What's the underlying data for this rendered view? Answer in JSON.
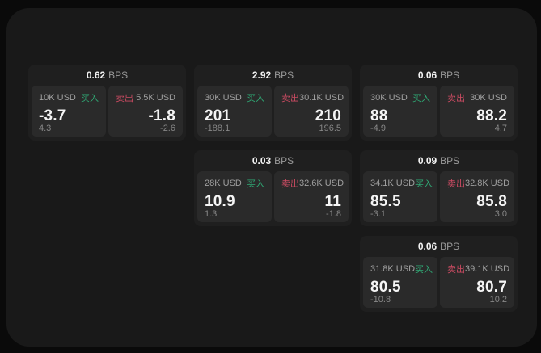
{
  "labels": {
    "bps_unit": "BPS",
    "buy": "买入",
    "sell": "卖出"
  },
  "colors": {
    "panel_bg": "#191919",
    "card_bg": "#1f1f1f",
    "tile_bg": "#2a2a2a",
    "buy_green": "#2fa874",
    "sell_red": "#cb4b62"
  },
  "cards": [
    {
      "bps": "0.62",
      "buy": {
        "amount": "10K USD",
        "price": "-3.7",
        "delta": "4.3"
      },
      "sell": {
        "amount": "5.5K USD",
        "price": "-1.8",
        "delta": "-2.6"
      }
    },
    {
      "bps": "2.92",
      "buy": {
        "amount": "30K USD",
        "price": "201",
        "delta": "-188.1"
      },
      "sell": {
        "amount": "30.1K USD",
        "price": "210",
        "delta": "196.5"
      }
    },
    {
      "bps": "0.06",
      "buy": {
        "amount": "30K USD",
        "price": "88",
        "delta": "-4.9"
      },
      "sell": {
        "amount": "30K USD",
        "price": "88.2",
        "delta": "4.7"
      }
    },
    {
      "bps": "0.03",
      "buy": {
        "amount": "28K USD",
        "price": "10.9",
        "delta": "1.3"
      },
      "sell": {
        "amount": "32.6K USD",
        "price": "11",
        "delta": "-1.8"
      }
    },
    {
      "bps": "0.09",
      "buy": {
        "amount": "34.1K USD",
        "price": "85.5",
        "delta": "-3.1"
      },
      "sell": {
        "amount": "32.8K USD",
        "price": "85.8",
        "delta": "3.0"
      }
    },
    {
      "bps": "0.06",
      "buy": {
        "amount": "31.8K USD",
        "price": "80.5",
        "delta": "-10.8"
      },
      "sell": {
        "amount": "39.1K USD",
        "price": "80.7",
        "delta": "10.2"
      }
    }
  ]
}
